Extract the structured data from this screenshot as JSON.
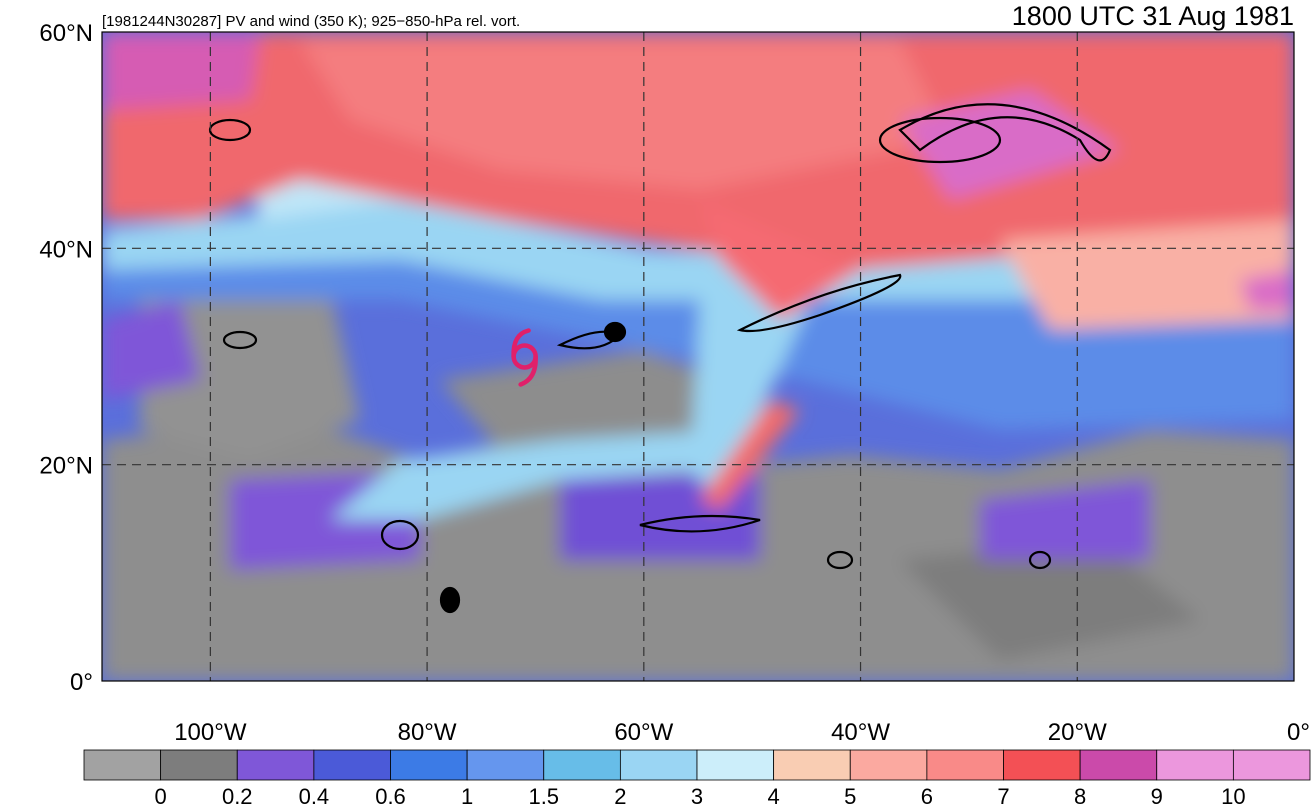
{
  "header": {
    "left_title": "[1981244N30287] PV and wind (350 K); 925−850-hPa rel. vort.",
    "right_title": "1800 UTC 31 Aug 1981"
  },
  "map": {
    "lon_range": [
      -110,
      0
    ],
    "lat_range": [
      0,
      60
    ],
    "lat_labels": [
      "0°",
      "20°N",
      "40°N",
      "60°N"
    ],
    "lat_values": [
      0,
      20,
      40,
      60
    ],
    "lon_labels": [
      "100°W",
      "80°W",
      "60°W",
      "40°W",
      "20°W",
      "0°"
    ],
    "lon_values": [
      -100,
      -80,
      -60,
      -40,
      -20,
      0
    ],
    "storm_symbol": {
      "lon": -71,
      "lat": 30,
      "color": "#e0206a"
    }
  },
  "colorbar": {
    "labels": [
      "0",
      "0.2",
      "0.4",
      "0.6",
      "1",
      "1.5",
      "2",
      "3",
      "4",
      "5",
      "6",
      "7",
      "8",
      "9",
      "10"
    ],
    "colors": [
      "#a2a2a2",
      "#7d7d7d",
      "#7f57d8",
      "#4b5ad8",
      "#3c7be6",
      "#6596ee",
      "#67bde8",
      "#9ad5f3",
      "#cceefa",
      "#f9cdb3",
      "#fba9a0",
      "#f98a88",
      "#f35055",
      "#cb4aaa",
      "#ec97dd"
    ]
  }
}
